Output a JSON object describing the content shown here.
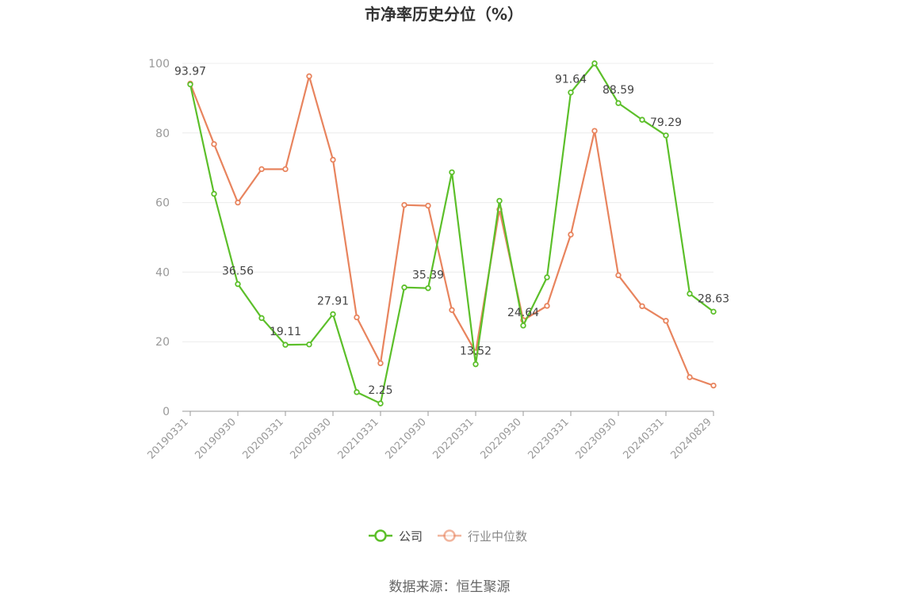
{
  "chart_data": {
    "type": "line",
    "title": "市净率历史分位（%）",
    "source": "数据来源：恒生聚源",
    "ylim": [
      0,
      100
    ],
    "yticks": [
      0,
      20,
      40,
      60,
      80,
      100
    ],
    "x": [
      "20190331",
      "20190630",
      "20190930",
      "20191231",
      "20200331",
      "20200630",
      "20200930",
      "20201231",
      "20210331",
      "20210630",
      "20210930",
      "20211231",
      "20220331",
      "20220630",
      "20220930",
      "20221231",
      "20230331",
      "20230630",
      "20230930",
      "20231231",
      "20240331",
      "20240630",
      "20240829"
    ],
    "xtick_labels": [
      "20190331",
      "20190930",
      "20200331",
      "20200930",
      "20210331",
      "20210930",
      "20220331",
      "20220930",
      "20230331",
      "20230930",
      "20240331",
      "20240829"
    ],
    "grid": true,
    "legend_position": "bottom",
    "series": [
      {
        "name": "公司",
        "color": "#5cbf2a",
        "values": [
          93.97,
          62.5,
          36.56,
          26.8,
          19.11,
          19.2,
          27.91,
          5.5,
          2.25,
          35.6,
          35.39,
          68.7,
          13.52,
          60.5,
          24.64,
          38.5,
          91.64,
          100,
          88.59,
          83.8,
          79.29,
          33.8,
          28.63
        ],
        "labels": {
          "0": "93.97",
          "2": "36.56",
          "4": "19.11",
          "6": "27.91",
          "8": "2.25",
          "10": "35.39",
          "12": "13.52",
          "14": "24.64",
          "16": "91.64",
          "18": "88.59",
          "20": "79.29",
          "22": "28.63"
        }
      },
      {
        "name": "行业中位数",
        "color": "#e8845e",
        "values": [
          94.2,
          76.8,
          60.0,
          69.6,
          69.6,
          96.3,
          72.3,
          27.0,
          13.8,
          59.3,
          59.1,
          29.1,
          17.0,
          58.0,
          26.2,
          30.3,
          50.8,
          80.6,
          39.1,
          30.2,
          26.0,
          9.8,
          7.4
        ]
      }
    ]
  }
}
